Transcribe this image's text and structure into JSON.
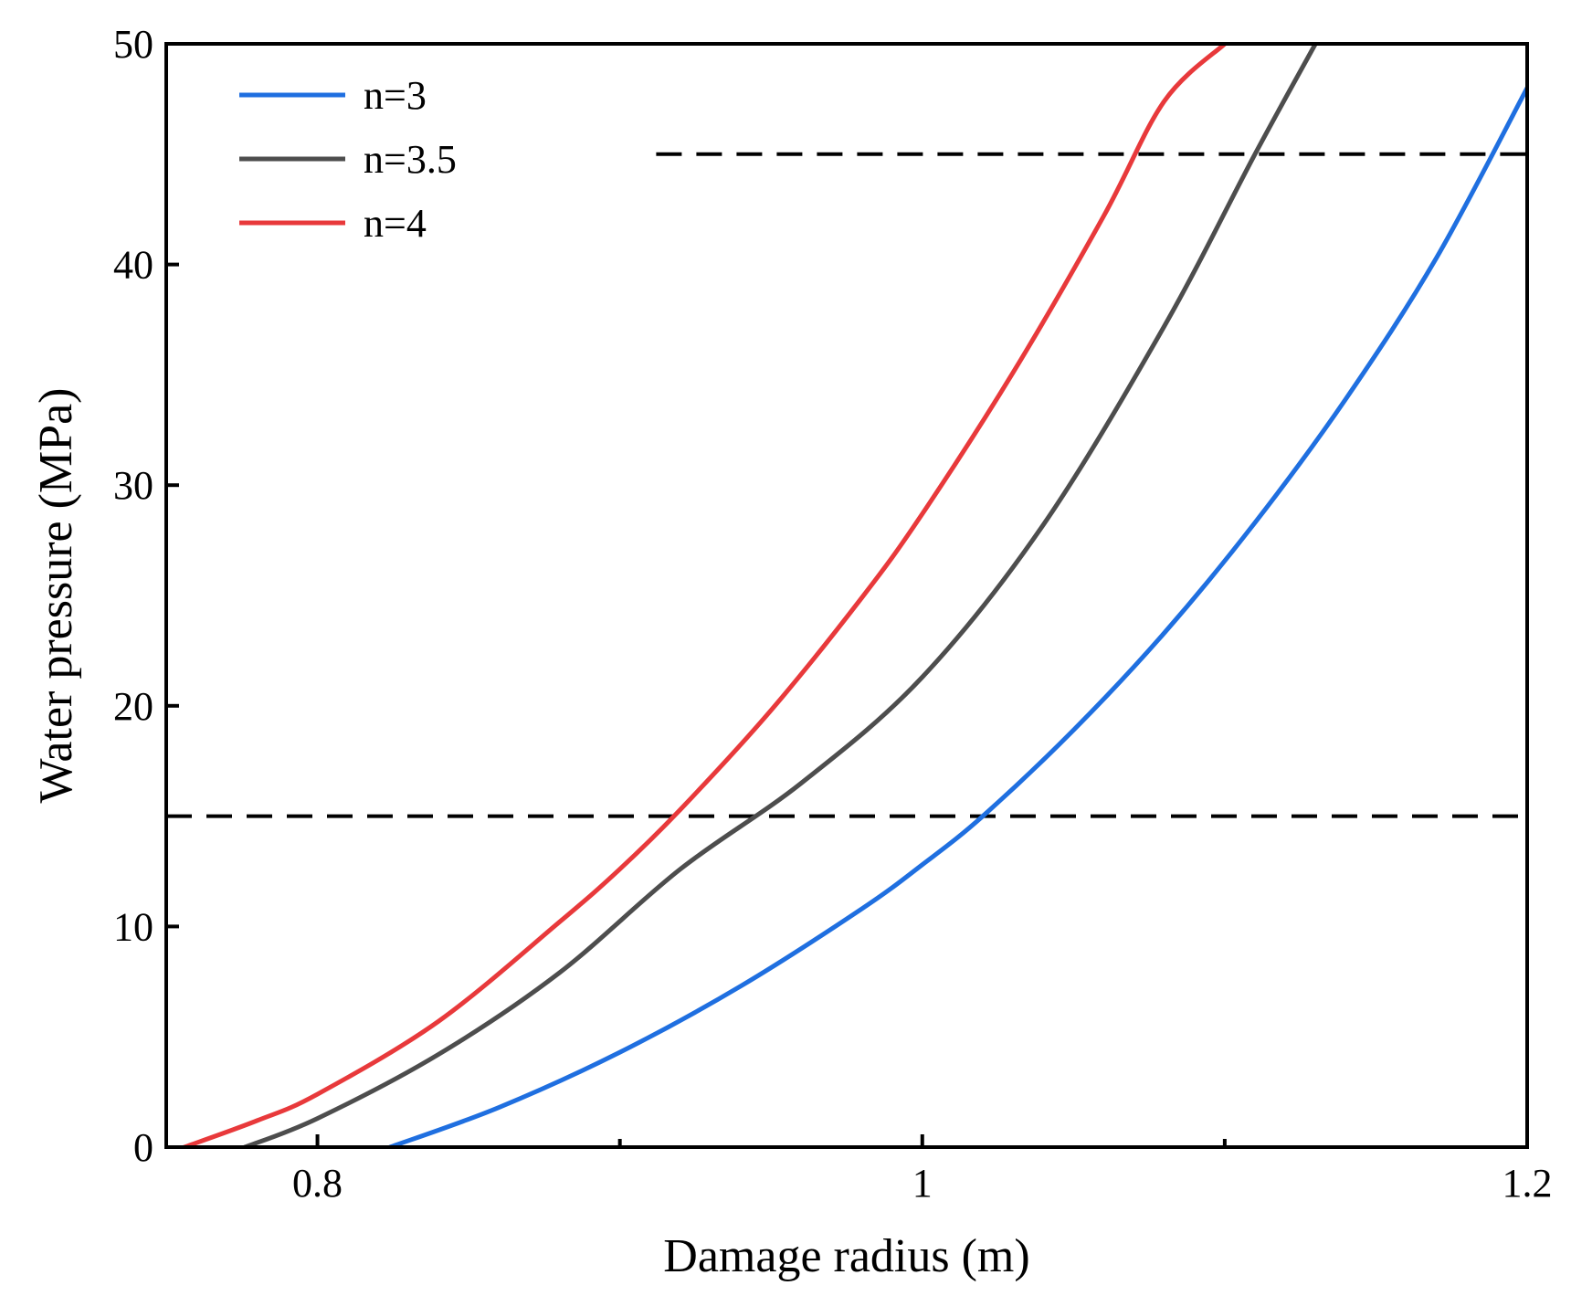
{
  "chart_data": {
    "type": "line",
    "title": "",
    "xlabel": "Damage radius (m)",
    "ylabel": "Water pressure (MPa)",
    "xlim": [
      0.75,
      1.2
    ],
    "ylim": [
      0,
      50
    ],
    "xticks": [
      0.8,
      1.0,
      1.2
    ],
    "xtick_labels": [
      "0.8",
      "1",
      "1.2"
    ],
    "xminor_ticks": [
      0.9,
      1.1
    ],
    "yticks": [
      0,
      10,
      20,
      30,
      40,
      50
    ],
    "ytick_labels": [
      "0",
      "10",
      "20",
      "30",
      "40",
      "50"
    ],
    "grid": false,
    "legend_position": "top-left",
    "series": [
      {
        "name": "n=3",
        "color": "#1f6fe0",
        "x": [
          0.824,
          0.86,
          0.9,
          0.94,
          0.98,
          1.0,
          1.02,
          1.05,
          1.08,
          1.11,
          1.14,
          1.17,
          1.2
        ],
        "y": [
          0,
          1.8,
          4.3,
          7.3,
          10.8,
          12.8,
          15.0,
          18.9,
          23.3,
          28.3,
          33.9,
          40.3,
          48.0
        ]
      },
      {
        "name": "n=3.5",
        "color": "#4d4d4d",
        "x": [
          0.776,
          0.8,
          0.84,
          0.88,
          0.92,
          0.96,
          1.0,
          1.04,
          1.08,
          1.11,
          1.13
        ],
        "y": [
          0,
          1.3,
          4.2,
          7.9,
          12.6,
          16.5,
          21.3,
          28.2,
          37.2,
          45.0,
          50.0
        ]
      },
      {
        "name": "n=4",
        "color": "#e8393b",
        "x": [
          0.756,
          0.78,
          0.8,
          0.84,
          0.88,
          0.9,
          0.92,
          0.95,
          0.98,
          1.0,
          1.03,
          1.06,
          1.08,
          1.1
        ],
        "y": [
          0,
          1.2,
          2.4,
          5.7,
          10.2,
          12.6,
          15.3,
          19.8,
          24.9,
          28.7,
          35.1,
          42.2,
          47.4,
          50.0
        ]
      }
    ],
    "reference_lines": [
      {
        "y": 45,
        "x_start": 0.912,
        "x_end": 1.2,
        "style": "dashed",
        "color": "#000000"
      },
      {
        "y": 15,
        "x_start": 0.75,
        "x_end": 1.2,
        "style": "dashed",
        "color": "#000000"
      }
    ]
  }
}
